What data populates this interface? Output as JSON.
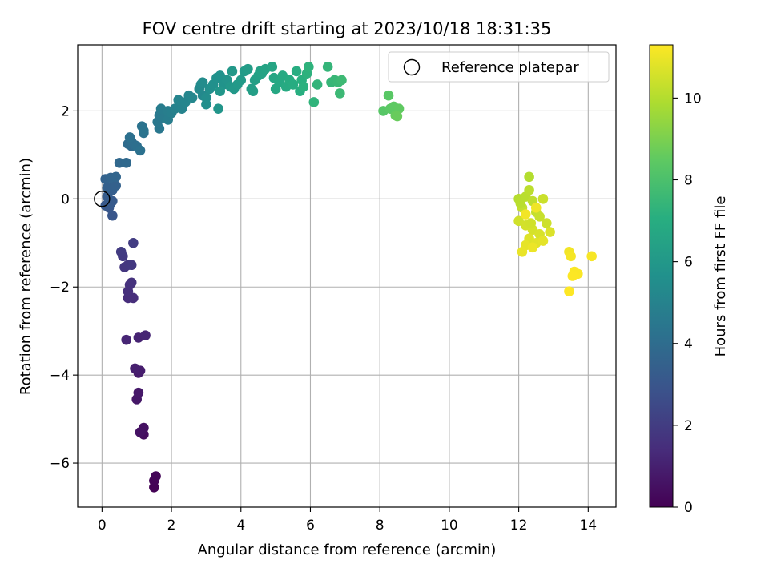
{
  "chart_data": {
    "type": "scatter",
    "title": "FOV centre drift starting at 2023/10/18 18:31:35",
    "xlabel": "Angular distance from reference (arcmin)",
    "ylabel": "Rotation from reference (arcmin)",
    "xlim": [
      -0.7,
      14.8
    ],
    "ylim": [
      -7.0,
      3.5
    ],
    "xticks": [
      0,
      2,
      4,
      6,
      8,
      10,
      12,
      14
    ],
    "yticks": [
      -6,
      -4,
      -2,
      0,
      2
    ],
    "grid": true,
    "legend": {
      "position": "upper-right",
      "entries": [
        "Reference platepar"
      ]
    },
    "colorbar": {
      "label": "Hours from first FF file",
      "colormap": "viridis",
      "range": [
        0,
        11.3
      ],
      "ticks": [
        0,
        2,
        4,
        6,
        8,
        10
      ]
    },
    "reference_point": {
      "x": 0,
      "y": 0
    },
    "points_xyh": [
      [
        1.5,
        -6.55,
        0.05
      ],
      [
        1.5,
        -6.4,
        0.1
      ],
      [
        1.55,
        -6.3,
        0.15
      ],
      [
        1.2,
        -5.35,
        0.4
      ],
      [
        1.1,
        -5.3,
        0.45
      ],
      [
        1.2,
        -5.2,
        0.5
      ],
      [
        1.1,
        -5.3,
        0.55
      ],
      [
        1.0,
        -4.55,
        0.7
      ],
      [
        1.05,
        -4.4,
        0.75
      ],
      [
        1.05,
        -3.95,
        0.85
      ],
      [
        1.1,
        -3.9,
        0.9
      ],
      [
        0.95,
        -3.85,
        0.95
      ],
      [
        1.05,
        -3.15,
        1.1
      ],
      [
        1.25,
        -3.1,
        1.15
      ],
      [
        0.7,
        -3.2,
        1.2
      ],
      [
        0.75,
        -2.25,
        1.4
      ],
      [
        0.9,
        -2.25,
        1.45
      ],
      [
        0.75,
        -2.1,
        1.5
      ],
      [
        0.8,
        -1.95,
        1.55
      ],
      [
        0.85,
        -1.9,
        1.6
      ],
      [
        0.65,
        -1.55,
        1.75
      ],
      [
        0.75,
        -1.5,
        1.8
      ],
      [
        0.85,
        -1.5,
        1.85
      ],
      [
        0.6,
        -1.3,
        1.9
      ],
      [
        0.55,
        -1.2,
        1.95
      ],
      [
        0.9,
        -1.0,
        2.0
      ],
      [
        0.3,
        -0.38,
        3.0
      ],
      [
        0.2,
        -0.2,
        3.05
      ],
      [
        0.15,
        -0.15,
        3.1
      ],
      [
        0.1,
        -0.15,
        3.15
      ],
      [
        0.25,
        -0.1,
        3.2
      ],
      [
        0.3,
        -0.05,
        3.2
      ],
      [
        0.15,
        0.05,
        3.25
      ],
      [
        0.2,
        0.15,
        3.3
      ],
      [
        0.3,
        0.2,
        3.35
      ],
      [
        0.35,
        0.3,
        3.4
      ],
      [
        0.15,
        0.25,
        3.45
      ],
      [
        0.4,
        0.3,
        3.5
      ],
      [
        0.1,
        0.45,
        3.55
      ],
      [
        0.25,
        0.48,
        3.6
      ],
      [
        0.4,
        0.5,
        3.65
      ],
      [
        0.5,
        0.82,
        3.8
      ],
      [
        0.7,
        0.82,
        3.85
      ],
      [
        0.85,
        1.2,
        3.9
      ],
      [
        0.75,
        1.25,
        3.95
      ],
      [
        0.85,
        1.3,
        4.0
      ],
      [
        0.95,
        1.22,
        4.05
      ],
      [
        1.0,
        1.2,
        4.1
      ],
      [
        0.8,
        1.4,
        4.15
      ],
      [
        1.1,
        1.1,
        4.2
      ],
      [
        1.2,
        1.5,
        4.25
      ],
      [
        1.15,
        1.65,
        4.3
      ],
      [
        1.2,
        1.55,
        4.35
      ],
      [
        1.65,
        1.6,
        4.45
      ],
      [
        1.6,
        1.75,
        4.5
      ],
      [
        1.65,
        1.9,
        4.55
      ],
      [
        1.75,
        1.95,
        4.6
      ],
      [
        1.8,
        1.85,
        4.65
      ],
      [
        1.7,
        2.05,
        4.7
      ],
      [
        1.9,
        1.8,
        4.75
      ],
      [
        1.9,
        2.0,
        4.8
      ],
      [
        2.0,
        1.95,
        4.85
      ],
      [
        2.1,
        2.05,
        4.9
      ],
      [
        2.2,
        2.1,
        4.95
      ],
      [
        2.3,
        2.05,
        5.0
      ],
      [
        2.2,
        2.25,
        5.05
      ],
      [
        2.4,
        2.2,
        5.1
      ],
      [
        2.5,
        2.35,
        5.15
      ],
      [
        2.6,
        2.3,
        5.2
      ],
      [
        2.9,
        2.35,
        5.25
      ],
      [
        2.8,
        2.5,
        5.3
      ],
      [
        2.85,
        2.6,
        5.35
      ],
      [
        2.9,
        2.65,
        5.4
      ],
      [
        3.0,
        2.3,
        5.45
      ],
      [
        3.0,
        2.15,
        5.5
      ],
      [
        3.1,
        2.5,
        5.55
      ],
      [
        3.2,
        2.6,
        5.6
      ],
      [
        3.3,
        2.75,
        5.65
      ],
      [
        3.4,
        2.8,
        5.7
      ],
      [
        3.5,
        2.6,
        5.75
      ],
      [
        3.6,
        2.7,
        5.8
      ],
      [
        3.35,
        2.05,
        5.85
      ],
      [
        3.4,
        2.45,
        5.9
      ],
      [
        3.7,
        2.55,
        5.95
      ],
      [
        3.8,
        2.5,
        6.0
      ],
      [
        3.75,
        2.9,
        6.0
      ],
      [
        3.9,
        2.6,
        6.05
      ],
      [
        4.0,
        2.7,
        6.1
      ],
      [
        4.1,
        2.9,
        6.15
      ],
      [
        4.2,
        2.95,
        6.2
      ],
      [
        4.3,
        2.5,
        6.25
      ],
      [
        4.35,
        2.45,
        6.3
      ],
      [
        4.4,
        2.7,
        6.35
      ],
      [
        4.5,
        2.8,
        6.4
      ],
      [
        4.55,
        2.9,
        6.45
      ],
      [
        4.6,
        2.85,
        6.5
      ],
      [
        4.7,
        2.95,
        6.55
      ],
      [
        4.9,
        3.0,
        6.6
      ],
      [
        4.95,
        2.75,
        6.65
      ],
      [
        5.0,
        2.5,
        6.7
      ],
      [
        5.1,
        2.65,
        6.75
      ],
      [
        5.2,
        2.8,
        6.8
      ],
      [
        5.3,
        2.55,
        6.85
      ],
      [
        5.4,
        2.7,
        6.9
      ],
      [
        5.5,
        2.6,
        6.95
      ],
      [
        5.6,
        2.9,
        7.0
      ],
      [
        5.7,
        2.45,
        7.05
      ],
      [
        5.75,
        2.7,
        7.1
      ],
      [
        5.8,
        2.55,
        7.15
      ],
      [
        5.9,
        2.85,
        7.2
      ],
      [
        5.95,
        3.0,
        7.25
      ],
      [
        6.1,
        2.2,
        7.3
      ],
      [
        6.2,
        2.6,
        7.35
      ],
      [
        6.5,
        3.0,
        7.4
      ],
      [
        6.6,
        2.65,
        7.45
      ],
      [
        6.7,
        2.7,
        7.5
      ],
      [
        6.8,
        2.65,
        7.55
      ],
      [
        6.85,
        2.4,
        7.6
      ],
      [
        6.9,
        2.7,
        7.65
      ],
      [
        8.1,
        2.0,
        8.3
      ],
      [
        8.25,
        2.35,
        8.35
      ],
      [
        8.3,
        2.05,
        8.4
      ],
      [
        8.4,
        2.1,
        8.45
      ],
      [
        8.55,
        2.05,
        8.5
      ],
      [
        8.45,
        1.9,
        8.6
      ],
      [
        8.5,
        1.88,
        8.65
      ],
      [
        12.3,
        0.5,
        10.0
      ],
      [
        12.0,
        0.0,
        10.05
      ],
      [
        12.2,
        0.05,
        10.1
      ],
      [
        12.3,
        0.2,
        10.15
      ],
      [
        12.4,
        -0.05,
        10.2
      ],
      [
        12.1,
        -0.2,
        10.25
      ],
      [
        12.5,
        -0.3,
        10.3
      ],
      [
        12.6,
        -0.4,
        10.35
      ],
      [
        12.7,
        0.0,
        10.4
      ],
      [
        12.8,
        -0.55,
        10.45
      ],
      [
        12.0,
        -0.5,
        10.5
      ],
      [
        12.2,
        -0.6,
        10.55
      ],
      [
        12.4,
        -0.7,
        10.6
      ],
      [
        12.6,
        -0.8,
        10.65
      ],
      [
        12.9,
        -0.75,
        10.7
      ],
      [
        12.3,
        -0.9,
        10.75
      ],
      [
        12.5,
        -1.0,
        10.8
      ],
      [
        12.7,
        -0.95,
        10.85
      ],
      [
        12.2,
        -1.05,
        10.9
      ],
      [
        12.1,
        -1.2,
        10.95
      ],
      [
        12.4,
        -1.1,
        11.0
      ],
      [
        12.5,
        -0.2,
        11.05
      ],
      [
        12.2,
        -0.35,
        11.1
      ],
      [
        12.05,
        -0.1,
        10.1
      ],
      [
        12.35,
        -0.55,
        10.5
      ],
      [
        13.45,
        -1.2,
        11.1
      ],
      [
        13.5,
        -1.3,
        11.15
      ],
      [
        14.1,
        -1.3,
        11.2
      ],
      [
        13.6,
        -1.65,
        11.25
      ],
      [
        13.7,
        -1.7,
        11.25
      ],
      [
        13.55,
        -1.75,
        11.28
      ],
      [
        13.45,
        -2.1,
        11.3
      ]
    ]
  }
}
